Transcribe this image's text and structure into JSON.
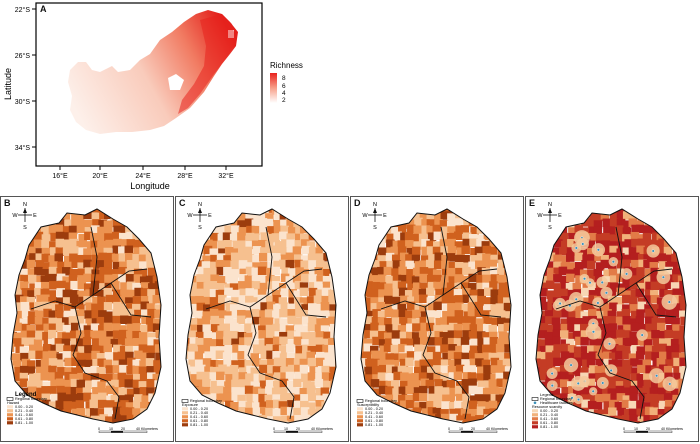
{
  "panel_a": {
    "label": "A",
    "ylabel": "Latitude",
    "xlabel": "Longitude",
    "yticks": [
      "22°S",
      "26°S",
      "30°S",
      "34°S"
    ],
    "xticks": [
      "16°E",
      "20°E",
      "24°E",
      "28°E",
      "32°E"
    ],
    "legend_title": "Richness",
    "legend_values": [
      "8",
      "6",
      "4",
      "2"
    ],
    "colors": {
      "low": "#fde0d6",
      "high": "#e8221e"
    }
  },
  "panels": [
    {
      "label": "B",
      "legend_title": "Legend",
      "boundary_label": "Regional boundary",
      "variable": "Hazard",
      "classes": [
        "0.00 - 0.20",
        "0.21 - 0.40",
        "0.41 - 0.60",
        "0.61 - 0.80",
        "0.81 - 1.00"
      ],
      "scale_labels": [
        "0",
        "10",
        "20",
        "40 Kilometers"
      ]
    },
    {
      "label": "C",
      "legend_title": "",
      "boundary_label": "Regional boundary",
      "variable": "Exposure",
      "classes": [
        "0.00 - 0.20",
        "0.21 - 0.40",
        "0.41 - 0.60",
        "0.61 - 0.80",
        "0.81 - 1.00"
      ],
      "scale_labels": [
        "0",
        "10",
        "20",
        "40 Kilometers"
      ]
    },
    {
      "label": "D",
      "legend_title": "",
      "boundary_label": "Regional boundary",
      "variable": "Susceptibility",
      "classes": [
        "0.00 - 0.20",
        "0.21 - 0.40",
        "0.41 - 0.60",
        "0.61 - 0.80",
        "0.81 - 1.00"
      ],
      "scale_labels": [
        "0",
        "10",
        "20",
        "40 Kilometers"
      ]
    },
    {
      "label": "E",
      "legend_title": "Legend",
      "boundary_label": "Regional boundary",
      "extra_label": "Healthcare facilities",
      "variable": "Resource scarcity",
      "classes": [
        "0.00 - 0.20",
        "0.21 - 0.40",
        "0.41 - 0.60",
        "0.61 - 0.80",
        "0.81 - 1.00"
      ],
      "scale_labels": [
        "0",
        "10",
        "20",
        "40 Kilometers"
      ]
    }
  ],
  "compass": {
    "n": "N",
    "s": "S",
    "e": "E",
    "w": "W"
  },
  "class_colors": [
    "#fbe3cd",
    "#f6c08f",
    "#ec9350",
    "#d0611e",
    "#9c3c0d"
  ],
  "panel_e_colors": [
    "#f7d7b5",
    "#f1b17a",
    "#e27b47",
    "#c43c25",
    "#b41f1f"
  ]
}
